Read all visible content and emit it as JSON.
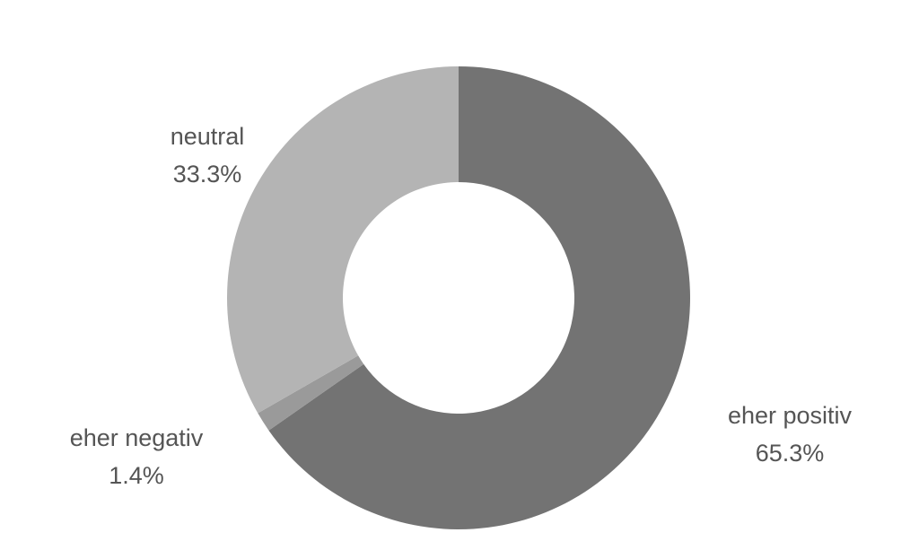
{
  "chart_data": {
    "type": "pie",
    "style": "donut",
    "slices": [
      {
        "label": "eher positiv",
        "value": 65.3,
        "value_label": "65.3%",
        "color": "#737373"
      },
      {
        "label": "eher negativ",
        "value": 1.4,
        "value_label": "1.4%",
        "color": "#9a9a9a"
      },
      {
        "label": "neutral",
        "value": 33.3,
        "value_label": "33.3%",
        "color": "#b4b4b4"
      }
    ],
    "start_angle": "top (12 o'clock)",
    "direction": "clockwise",
    "legend": "none (labels beside slices)",
    "title": ""
  }
}
